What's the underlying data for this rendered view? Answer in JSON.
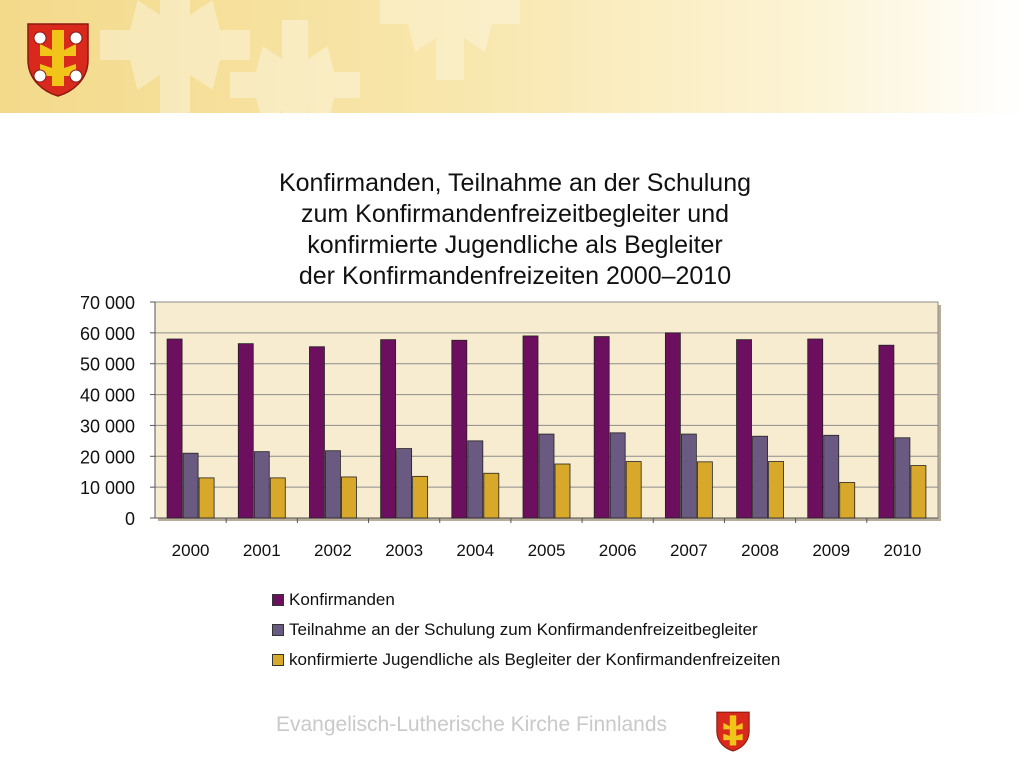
{
  "branding": {
    "footer_text": "Evangelisch-Lutherische Kirche Finnlands",
    "accent_yellow": "#f0c419",
    "accent_red": "#d9281c"
  },
  "chart_data": {
    "type": "bar",
    "title_lines": [
      "Konfirmanden, Teilnahme an der Schulung",
      "zum Konfirmandenfreizeitbegleiter und",
      "konfirmierte Jugendliche als Begleiter",
      "der Konfirmandenfreizeiten 2000–2010"
    ],
    "categories": [
      "2000",
      "2001",
      "2002",
      "2003",
      "2004",
      "2005",
      "2006",
      "2007",
      "2008",
      "2009",
      "2010"
    ],
    "series": [
      {
        "name": "Konfirmanden",
        "color": "#6b0f5e",
        "values": [
          58000,
          56500,
          55500,
          57800,
          57600,
          59000,
          58800,
          60000,
          57800,
          58000,
          56000
        ]
      },
      {
        "name": "Teilnahme an der Schulung zum Konfirmandenfreizeitbegleiter",
        "color": "#6a5a82",
        "values": [
          21000,
          21500,
          21800,
          22500,
          25000,
          27200,
          27600,
          27200,
          26500,
          26800,
          26000
        ]
      },
      {
        "name": "konfirmierte Jugendliche als Begleiter der Konfirmandenfreizeiten",
        "color": "#d7a82a",
        "values": [
          13000,
          13000,
          13300,
          13500,
          14500,
          17500,
          18300,
          18200,
          18300,
          11500,
          17000
        ]
      }
    ],
    "y_ticks": [
      "0",
      "10 000",
      "20 000",
      "30 000",
      "40 000",
      "50 000",
      "60 000",
      "70 000"
    ],
    "ylim": [
      0,
      70000
    ],
    "grid": true,
    "legend_position": "bottom",
    "plot_background": "#f8ecd0"
  }
}
